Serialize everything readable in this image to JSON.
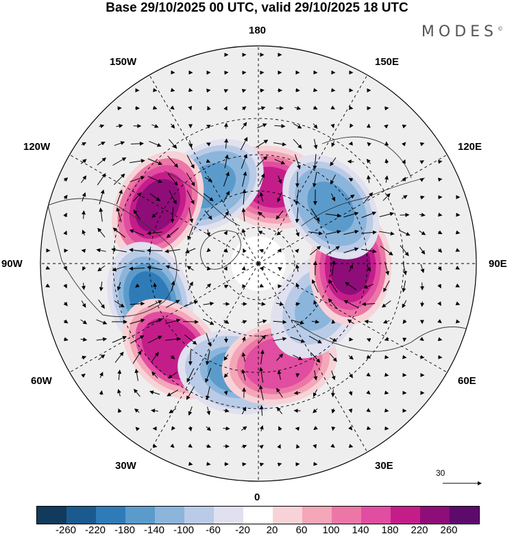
{
  "title": "Base 29/10/2025 00 UTC, valid 29/10/2025 18 UTC",
  "logo": "MODES",
  "logo_mark": "©",
  "longitude_labels": {
    "lon_180": "180",
    "lon_150E": "150E",
    "lon_120E": "120E",
    "lon_90E": "90E",
    "lon_60E": "60E",
    "lon_30E": "30E",
    "lon_0": "0",
    "lon_30W": "30W",
    "lon_60W": "60W",
    "lon_90W": "90W",
    "lon_120W": "120W",
    "lon_150W": "150W"
  },
  "reference_vector": {
    "label": "30"
  },
  "colorbar": {
    "ticks": [
      "-260",
      "-220",
      "-180",
      "-140",
      "-100",
      "-60",
      "-20",
      "20",
      "60",
      "100",
      "140",
      "180",
      "220",
      "260"
    ],
    "colors": [
      "#113a5c",
      "#1b5a8f",
      "#2f7bb8",
      "#5b9bcb",
      "#8cb5dc",
      "#b9cbe6",
      "#e0e0ef",
      "#ffffff",
      "#f7d3d8",
      "#f3a7b8",
      "#ec77a6",
      "#e14da0",
      "#c41d8a",
      "#8e0d78",
      "#5c0a6b"
    ]
  },
  "anomaly_centers": [
    {
      "lon_deg": 170,
      "lat_deg": 58,
      "value": 200
    },
    {
      "lon_deg": 212,
      "lat_deg": 52,
      "value": -160
    },
    {
      "lon_deg": 240,
      "lat_deg": 42,
      "value": 240
    },
    {
      "lon_deg": 288,
      "lat_deg": 43,
      "value": -180
    },
    {
      "lon_deg": 315,
      "lat_deg": 40,
      "value": 220
    },
    {
      "lon_deg": 348,
      "lat_deg": 44,
      "value": -150
    },
    {
      "lon_deg": 12,
      "lat_deg": 48,
      "value": 180
    },
    {
      "lon_deg": 55,
      "lat_deg": 60,
      "value": -110
    },
    {
      "lon_deg": 88,
      "lat_deg": 52,
      "value": 230
    },
    {
      "lon_deg": 128,
      "lat_deg": 52,
      "value": -170
    }
  ]
}
